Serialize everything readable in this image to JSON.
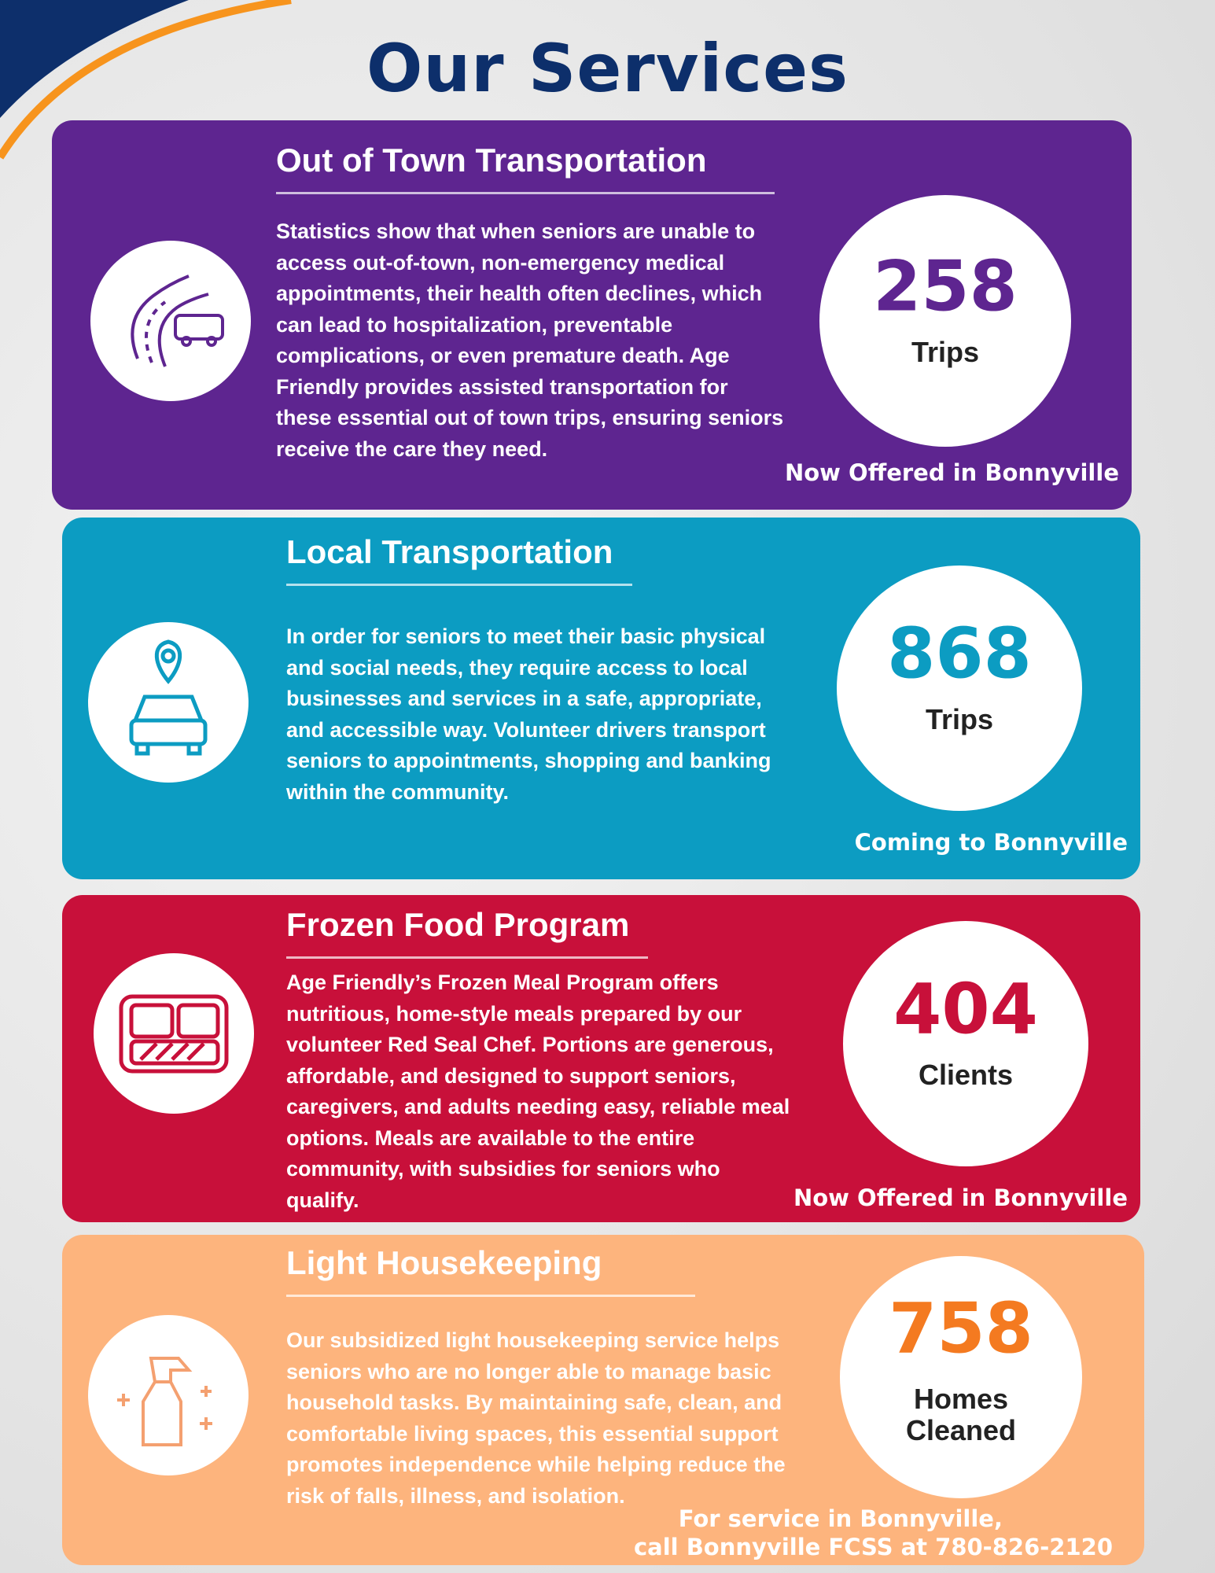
{
  "header": {
    "title": "Our Services"
  },
  "sections": [
    {
      "title": "Out of Town Transportation",
      "body": "Statistics show that when seniors are unable to access out-of-town, non-emergency medical appointments, their health often declines, which can lead to hospitalization, preventable complications, or even premature death. Age Friendly provides assisted transportation for these essential out of town trips, ensuring seniors receive the care they need.",
      "stat": {
        "value": 258,
        "label": "Trips"
      },
      "note": [
        "Now Offered in Bonnyville"
      ]
    },
    {
      "title": "Local Transportation",
      "body": "In order for seniors to meet their basic physical and social needs, they require access to local businesses and services in a safe, appropriate, and accessible way. Volunteer drivers transport seniors to appointments, shopping and banking  within the community.",
      "stat": {
        "value": 868,
        "label": "Trips"
      },
      "note": [
        "Coming to Bonnyville"
      ]
    },
    {
      "title": "Frozen Food Program",
      "body": "Age Friendly’s Frozen Meal Program offers nutritious, home-style meals prepared by our volunteer Red Seal Chef. Portions are generous, affordable, and designed to support seniors, caregivers, and adults needing easy, reliable meal options. Meals are available to the entire community, with subsidies for seniors who qualify.",
      "stat": {
        "value": 404,
        "label": "Clients"
      },
      "note": [
        "Now Offered in Bonnyville"
      ]
    },
    {
      "title": "Light Housekeeping",
      "body": "Our subsidized light housekeeping service helps seniors who are no longer able to manage basic household tasks. By maintaining safe, clean, and comfortable living spaces, this essential support promotes independence while helping reduce the risk of falls, illness, and isolation.",
      "stat": {
        "value": 758,
        "label": "Homes Cleaned"
      },
      "note": [
        "For service in Bonnyville,",
        "call Bonnyville FCSS at 780-826-2120"
      ]
    }
  ]
}
